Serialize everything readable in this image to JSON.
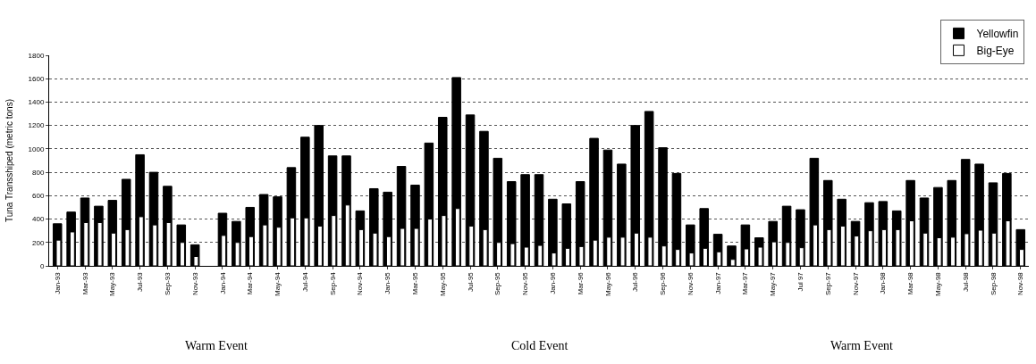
{
  "chart_data": {
    "type": "bar",
    "ylabel": "Tuna Transshiped (metric tons)",
    "categories": [
      "Jan-93",
      null,
      "Mar-93",
      null,
      "May-93",
      null,
      "Jul-93",
      null,
      "Sep-93",
      null,
      "Nov-93",
      null,
      "Jan-94",
      null,
      "Mar-94",
      null,
      "May-94",
      null,
      "Jul-94",
      null,
      "Sep-94",
      null,
      "Nov-94",
      null,
      "Jan-95",
      null,
      "Mar-95",
      null,
      "May-95",
      null,
      "Jul-95",
      null,
      "Sep-95",
      null,
      "Nov-95",
      null,
      "Jan-96",
      null,
      "Mar-96",
      null,
      "May-96",
      null,
      "Jul-96",
      null,
      "Sep-96",
      null,
      "Nov-96",
      null,
      "Jan-97",
      null,
      "Mar-97",
      null,
      "May-97",
      null,
      "Jul 97",
      null,
      "Sep-97",
      null,
      "Nov-97",
      null,
      "Jan-98",
      null,
      "Mar-98",
      null,
      "May-98",
      null,
      "Jul-98",
      null,
      "Sep-98",
      null,
      "Nov-98"
    ],
    "series": [
      {
        "name": "Yellowfin",
        "color": "#000000",
        "values": [
          360,
          460,
          580,
          510,
          560,
          740,
          950,
          800,
          680,
          350,
          180,
          null,
          450,
          380,
          500,
          610,
          590,
          840,
          1100,
          1200,
          940,
          940,
          470,
          660,
          630,
          850,
          690,
          1050,
          1270,
          1610,
          1290,
          1150,
          920,
          720,
          780,
          780,
          570,
          530,
          720,
          1090,
          990,
          870,
          1200,
          1320,
          1010,
          790,
          350,
          490,
          270,
          170,
          350,
          240,
          380,
          510,
          480,
          920,
          730,
          570,
          380,
          540,
          550,
          470,
          730,
          580,
          670,
          730,
          910,
          870,
          710,
          790,
          310
        ]
      },
      {
        "name": "Big-Eye",
        "color": "#ffffff",
        "values": [
          220,
          290,
          370,
          370,
          280,
          310,
          420,
          350,
          370,
          200,
          80,
          null,
          260,
          200,
          250,
          350,
          330,
          410,
          410,
          340,
          430,
          520,
          310,
          280,
          250,
          320,
          320,
          400,
          430,
          490,
          340,
          310,
          200,
          190,
          160,
          175,
          110,
          150,
          165,
          220,
          245,
          245,
          280,
          245,
          170,
          140,
          110,
          150,
          120,
          55,
          145,
          160,
          205,
          200,
          155,
          350,
          310,
          340,
          255,
          300,
          310,
          310,
          385,
          280,
          240,
          245,
          275,
          305,
          280,
          385,
          140
        ]
      }
    ],
    "ylim": [
      0,
      1800
    ],
    "yticks": [
      0,
      200,
      400,
      600,
      800,
      1000,
      1200,
      1400,
      1600,
      1800
    ],
    "grid": "y",
    "legend": "top right",
    "annotations": [
      "Warm Event",
      "Cold Event",
      "Warm Event"
    ]
  }
}
